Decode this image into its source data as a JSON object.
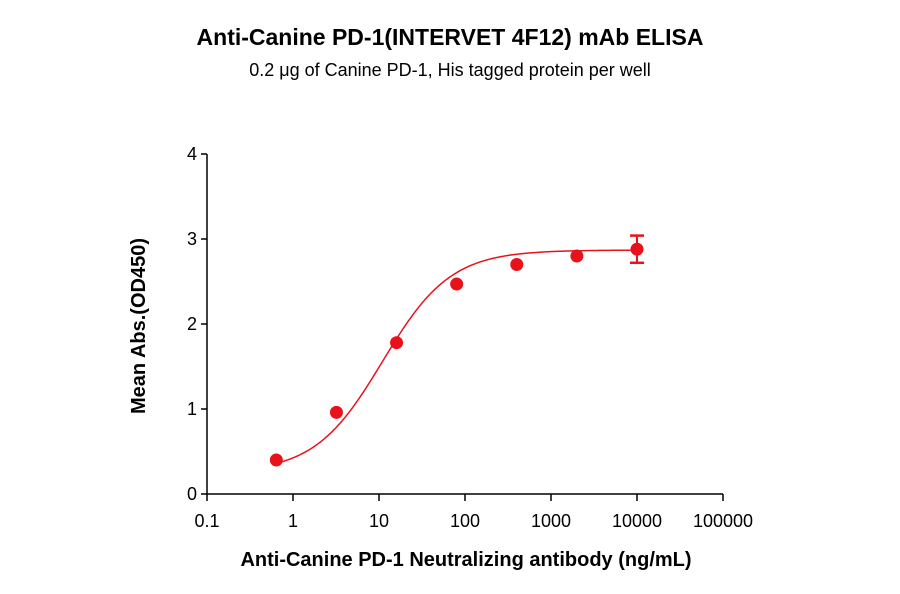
{
  "chart_data": {
    "type": "scatter",
    "title": "Anti-Canine PD-1(INTERVET 4F12) mAb ELISA",
    "subtitle": "0.2 μg of Canine PD-1, His tagged protein per well",
    "xlabel": "Anti-Canine PD-1 Neutralizing antibody (ng/mL)",
    "ylabel": "Mean Abs.(OD450)",
    "x_scale": "log",
    "xlim": [
      0.1,
      100000
    ],
    "ylim": [
      0,
      4
    ],
    "x_ticks": [
      "0.1",
      "1",
      "10",
      "100",
      "1000",
      "10000",
      "100000"
    ],
    "y_ticks": [
      "0",
      "1",
      "2",
      "3",
      "4"
    ],
    "grid": false,
    "series": [
      {
        "x": [
          0.64,
          3.2,
          16,
          80,
          400,
          2000,
          10000
        ],
        "y": [
          0.4,
          0.96,
          1.78,
          2.47,
          2.7,
          2.8,
          2.88
        ],
        "error": [
          0,
          0,
          0,
          0,
          0,
          0,
          0.16
        ],
        "fit": "4PL",
        "color": "#e8121b"
      }
    ]
  }
}
